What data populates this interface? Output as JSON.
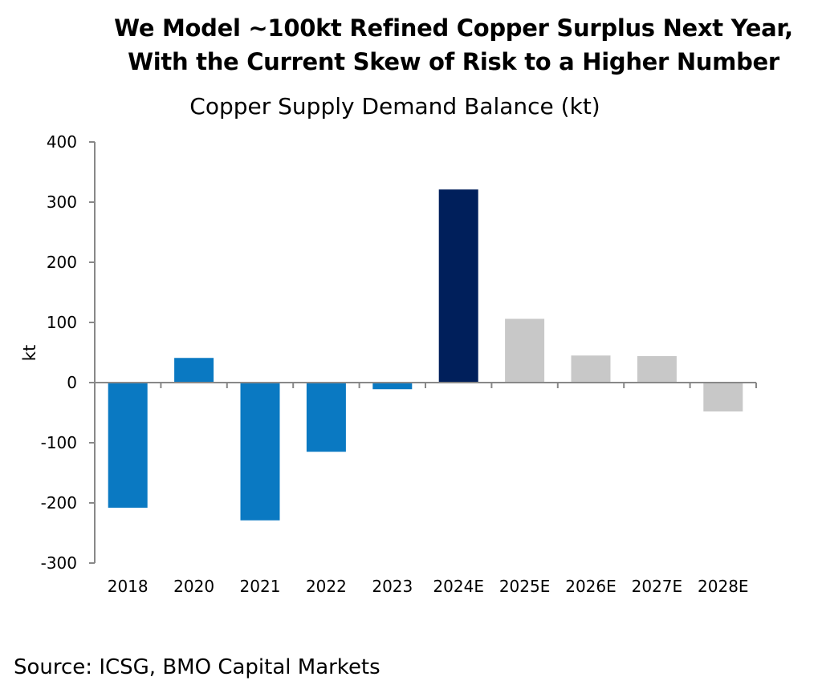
{
  "headline": {
    "line1": "We Model ~100kt Refined Copper Surplus Next Year,",
    "line2": "With the Current Skew of Risk to a Higher Number"
  },
  "source": "Source: ICSG, BMO Capital Markets",
  "chart_data": {
    "type": "bar",
    "title": "Copper Supply Demand Balance (kt)",
    "xlabel": "",
    "ylabel": "kt",
    "ylim": [
      -300,
      400
    ],
    "yticks": [
      400,
      300,
      200,
      100,
      0,
      -100,
      -200,
      -300
    ],
    "categories": [
      "2018",
      "2020",
      "2021",
      "2022",
      "2023",
      "2024E",
      "2025E",
      "2026E",
      "2027E",
      "2028E"
    ],
    "values": [
      -208,
      41,
      -229,
      -115,
      -11,
      321,
      106,
      45,
      44,
      -48
    ],
    "bar_colors": [
      "#0A79C2",
      "#0A79C2",
      "#0A79C2",
      "#0A79C2",
      "#0A79C2",
      "#001F5B",
      "#C8C8C8",
      "#C8C8C8",
      "#C8C8C8",
      "#C8C8C8"
    ],
    "grid": false,
    "legend": "none"
  }
}
